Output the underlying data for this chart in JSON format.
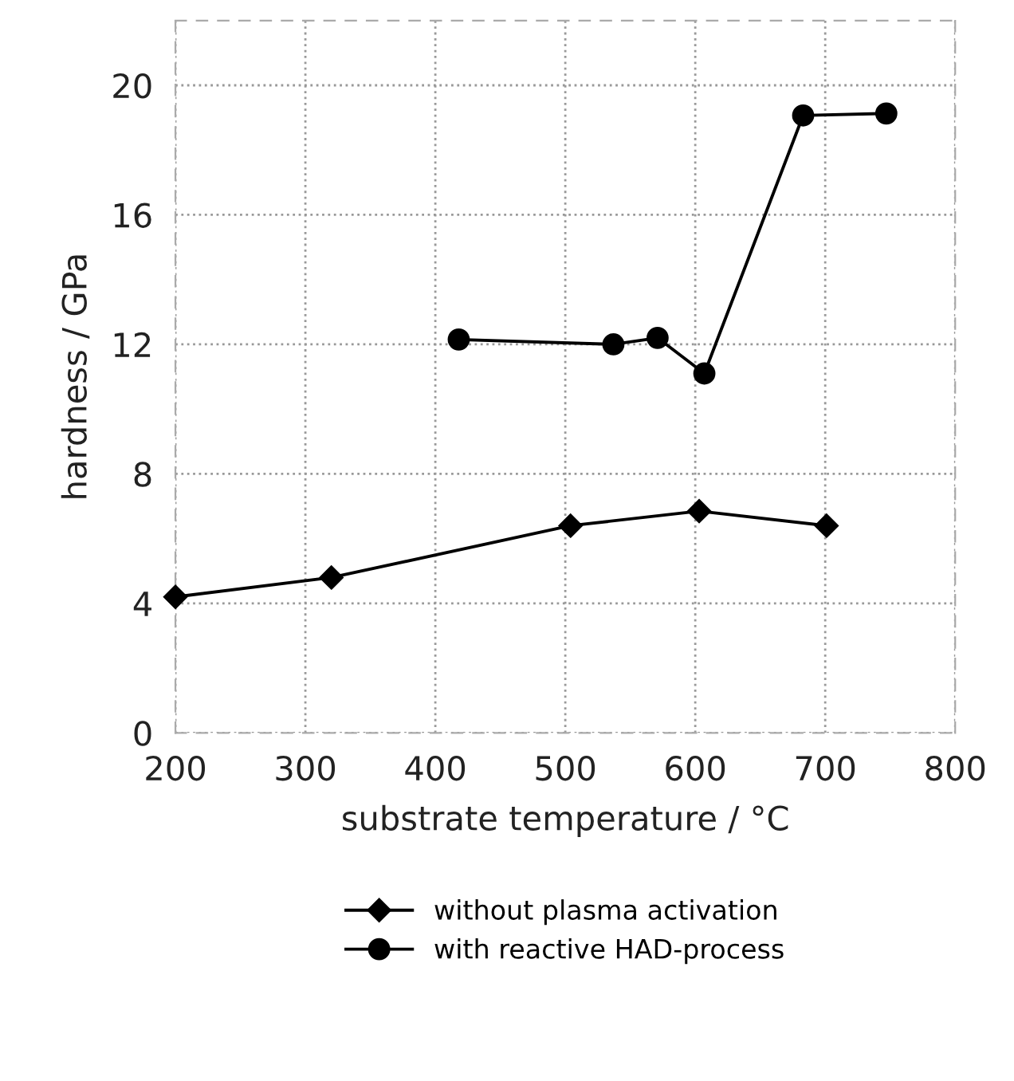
{
  "chart_data": {
    "type": "line",
    "xlabel": "substrate temperature / °C",
    "ylabel": "hardness / GPa",
    "series": [
      {
        "name": "without plasma activation",
        "color": "#000000",
        "marker": "diamond",
        "x": [
          200,
          320,
          504,
          603,
          701
        ],
        "values": [
          4.2,
          4.8,
          6.4,
          6.85,
          6.4
        ]
      },
      {
        "name": "with reactive HAD-process",
        "color": "#000000",
        "marker": "circle",
        "x": [
          418,
          537,
          571,
          607,
          683,
          747
        ],
        "values": [
          12.15,
          12.0,
          12.2,
          11.1,
          19.07,
          19.13
        ]
      }
    ],
    "xlim": [
      200,
      800
    ],
    "xticks": [
      200,
      300,
      400,
      500,
      600,
      700,
      800
    ],
    "ylim": [
      0,
      22
    ],
    "yticks": [
      0,
      4,
      8,
      12,
      16,
      20
    ],
    "grid": true,
    "legend": "bottom",
    "line_style": "solid"
  }
}
